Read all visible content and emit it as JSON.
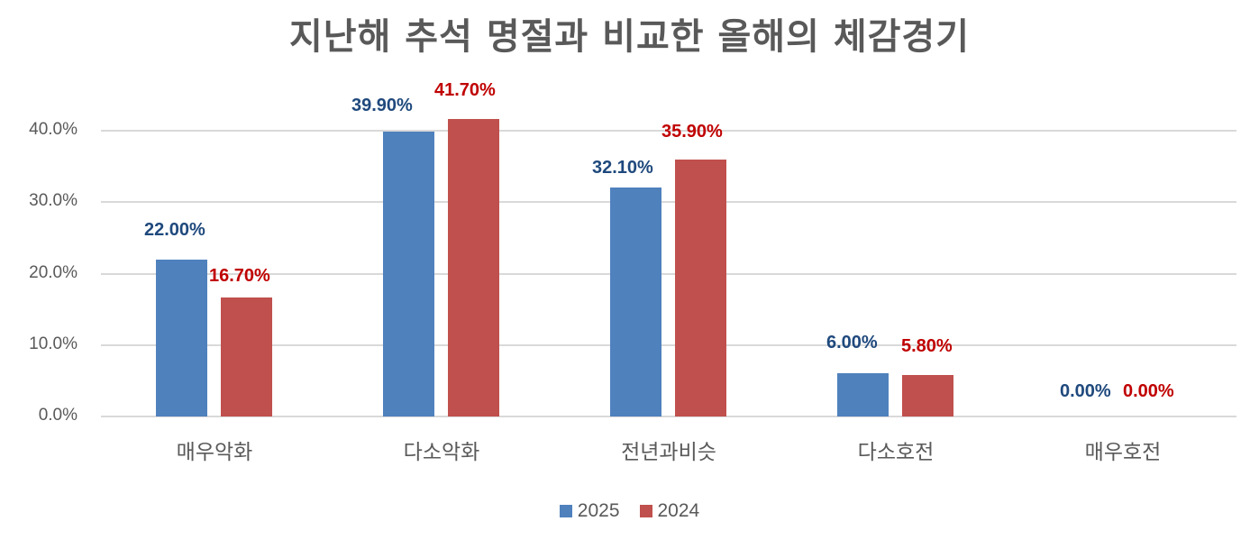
{
  "chart_data": {
    "type": "bar",
    "title": "지난해 추석 명절과 비교한 올해의 체감경기",
    "xlabel": "",
    "ylabel": "",
    "categories": [
      "매우악화",
      "다소악화",
      "전년과비슷",
      "다소호전",
      "매우호전"
    ],
    "series": [
      {
        "name": "2025",
        "color": "#4f81bd",
        "label_color": "#1f497d",
        "values": [
          22.0,
          39.9,
          32.1,
          6.0,
          0.0
        ],
        "labels": [
          "22.00%",
          "39.90%",
          "32.10%",
          "6.00%",
          "0.00%"
        ]
      },
      {
        "name": "2024",
        "color": "#c0504d",
        "label_color": "#c00000",
        "values": [
          16.7,
          41.7,
          35.9,
          5.8,
          0.0
        ],
        "labels": [
          "16.70%",
          "41.70%",
          "35.90%",
          "5.80%",
          "0.00%"
        ]
      }
    ],
    "ylim": [
      0,
      40
    ],
    "yticks": [
      "0.0%",
      "10.0%",
      "20.0%",
      "30.0%",
      "40.0%"
    ],
    "grid": true,
    "legend_position": "bottom"
  }
}
